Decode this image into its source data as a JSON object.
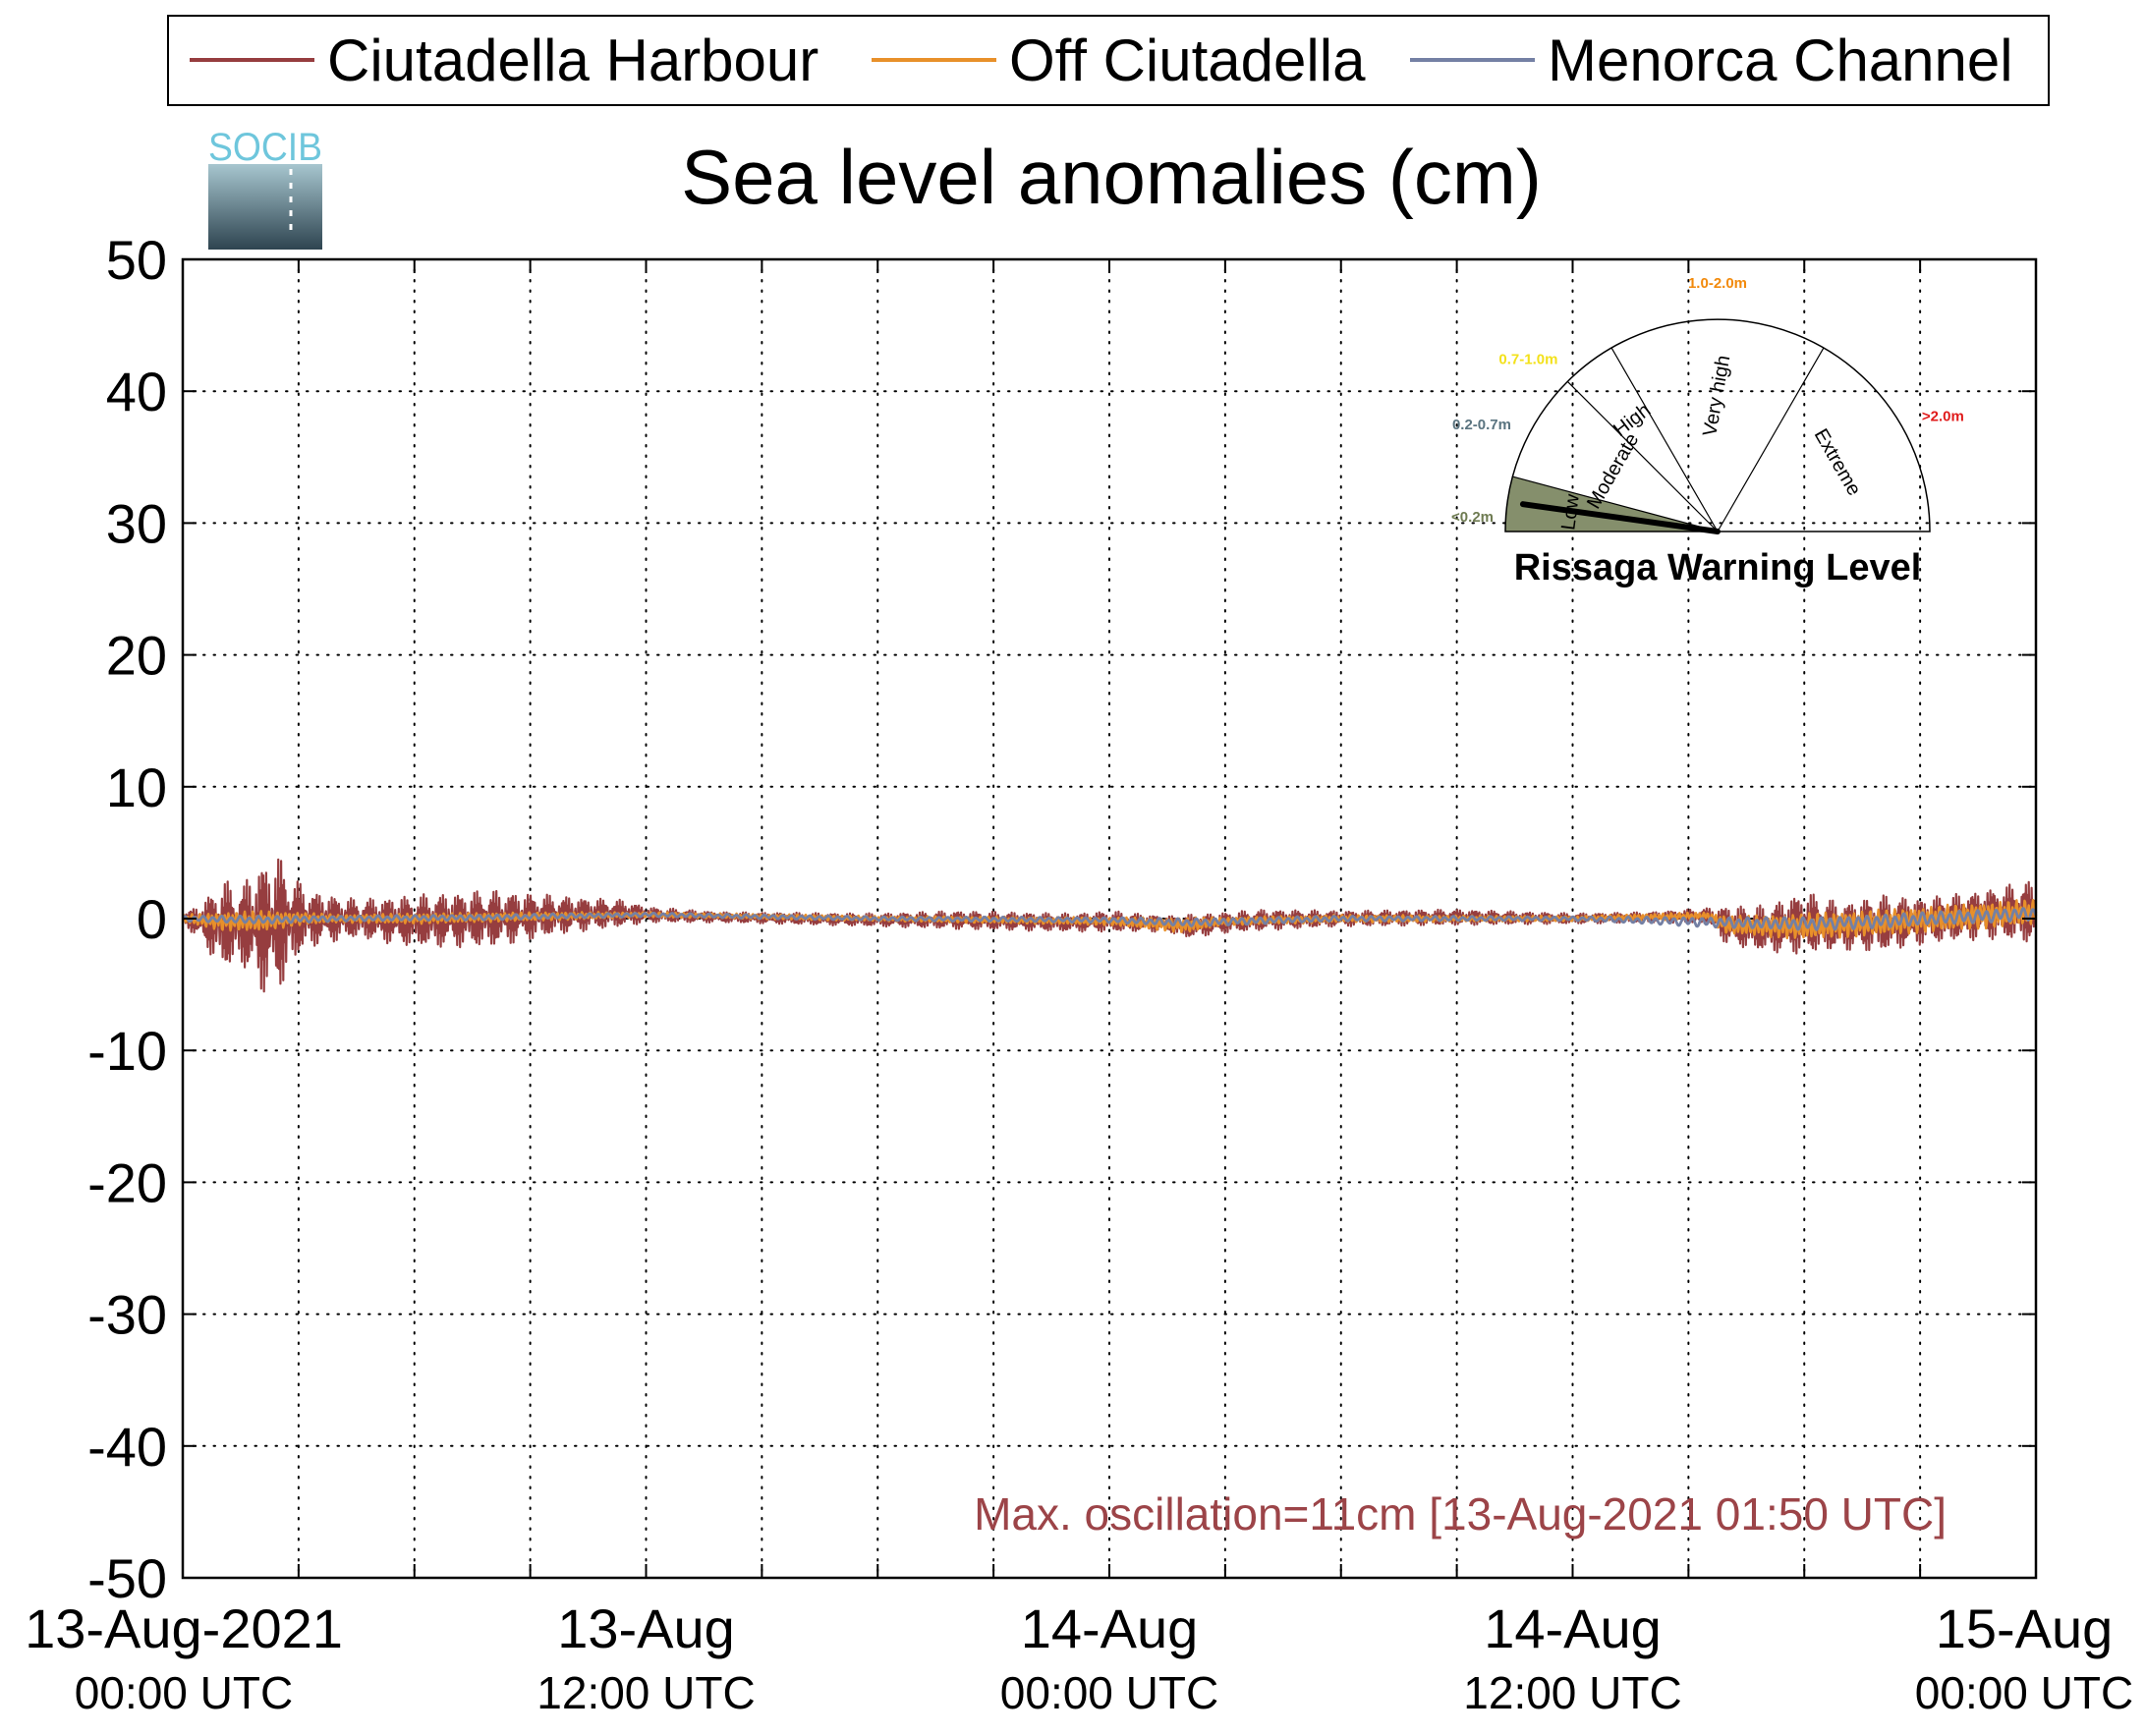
{
  "colors": {
    "harbour": "#963d3f",
    "offshore": "#e8902a",
    "channel": "#7480a4",
    "annotation": "#9c4448",
    "grid": "#000000",
    "logo_text": "#6ec6dc",
    "logo_top": "#a7c6cf",
    "logo_bottom": "#2e4450"
  },
  "logo": {
    "text": "SOCIB"
  },
  "legend": {
    "entries": [
      {
        "label": "Ciutadella Harbour",
        "color_key": "harbour"
      },
      {
        "label": "Off Ciutadella",
        "color_key": "offshore"
      },
      {
        "label": "Menorca Channel",
        "color_key": "channel"
      }
    ]
  },
  "annotation": {
    "text": "Max. oscillation=11cm [13-Aug-2021 01:50 UTC]"
  },
  "gauge": {
    "title": "Rissaga Warning Level",
    "sectors": [
      {
        "label": "Low",
        "range": "<0.2m",
        "range_color": "#6f7c52",
        "start_deg": 180,
        "end_deg": 165,
        "filled": true,
        "fill": "#858f6c"
      },
      {
        "label": "Moderate",
        "range": "0.2-0.7m",
        "range_color": "#5a7480",
        "start_deg": 165,
        "end_deg": 135,
        "filled": false
      },
      {
        "label": "High",
        "range": "0.7-1.0m",
        "range_color": "#f3e11b",
        "start_deg": 135,
        "end_deg": 120,
        "filled": false
      },
      {
        "label": "Very high",
        "range": "1.0-2.0m",
        "range_color": "#f28a0c",
        "start_deg": 120,
        "end_deg": 60,
        "filled": false
      },
      {
        "label": "Extreme",
        "range": ">2.0m",
        "range_color": "#e01b1b",
        "start_deg": 60,
        "end_deg": 0,
        "filled": false
      }
    ],
    "needle_deg": 172
  },
  "chart_data": {
    "type": "line",
    "title": "Sea level anomalies (cm)",
    "xlabel": "",
    "ylabel": "",
    "ylim": [
      -50,
      50
    ],
    "yticks": [
      50,
      40,
      30,
      20,
      10,
      0,
      -10,
      -20,
      -30,
      -40,
      -50
    ],
    "xlim_hours": [
      0,
      48
    ],
    "x_axis_note": "hours since 13-Aug-2021 00:00 UTC",
    "xticks_hours": [
      0,
      3,
      6,
      9,
      12,
      15,
      18,
      21,
      24,
      27,
      30,
      33,
      36,
      39,
      42,
      45,
      48
    ],
    "xtick_labels": [
      {
        "hour": 0,
        "line1": "13-Aug-2021",
        "line2": "00:00 UTC"
      },
      {
        "hour": 12,
        "line1": "13-Aug",
        "line2": "12:00 UTC"
      },
      {
        "hour": 24,
        "line1": "14-Aug",
        "line2": "00:00 UTC"
      },
      {
        "hour": 36,
        "line1": "14-Aug",
        "line2": "12:00 UTC"
      },
      {
        "hour": 48,
        "line1": "15-Aug",
        "line2": "00:00 UTC"
      }
    ],
    "grid": true,
    "legend_position": "top",
    "series": [
      {
        "name": "Ciutadella Harbour",
        "color_key": "harbour",
        "line_width": 2.2,
        "envelope": {
          "hours": [
            0,
            0.5,
            1.0,
            1.5,
            2.0,
            2.5,
            3.0,
            3.5,
            4.5,
            6,
            8,
            10,
            11.5,
            12,
            14,
            18,
            20,
            23,
            24,
            25.5,
            26,
            27,
            28,
            30,
            33,
            36,
            38,
            39.5,
            40,
            41,
            42,
            43,
            44,
            45,
            46,
            47,
            48
          ],
          "amplitude": [
            0.4,
            1.5,
            3.5,
            3.0,
            5.0,
            5.3,
            2.8,
            2.0,
            1.5,
            2.0,
            2.2,
            1.4,
            1.0,
            0.6,
            0.4,
            0.5,
            0.7,
            0.7,
            0.8,
            0.6,
            0.9,
            0.8,
            0.8,
            0.6,
            0.6,
            0.4,
            0.4,
            0.6,
            1.5,
            1.8,
            2.4,
            1.8,
            2.2,
            1.8,
            1.8,
            2.0,
            2.5
          ],
          "offset": [
            0,
            -0.3,
            -0.5,
            -0.5,
            -0.6,
            -0.4,
            0,
            0,
            0,
            -0.2,
            0,
            0.3,
            0.4,
            0.3,
            0.1,
            -0.1,
            -0.1,
            -0.3,
            -0.2,
            -0.4,
            -0.6,
            -0.3,
            -0.1,
            0,
            0.1,
            0,
            0.1,
            0.2,
            -0.5,
            -0.8,
            -0.3,
            -0.6,
            -0.4,
            -0.2,
            0.1,
            0.4,
            0.5
          ]
        }
      },
      {
        "name": "Off Ciutadella",
        "color_key": "offshore",
        "line_width": 2.4,
        "envelope": {
          "hours": [
            0,
            1,
            2,
            3,
            4,
            6,
            10,
            12,
            18,
            24,
            26,
            27,
            30,
            36,
            39.5,
            40,
            42,
            44,
            46,
            48
          ],
          "amplitude": [
            0.3,
            0.7,
            0.8,
            0.5,
            0.3,
            0.4,
            0.3,
            0.2,
            0.2,
            0.3,
            0.6,
            0.3,
            0.3,
            0.2,
            0.3,
            0.7,
            1.0,
            1.0,
            1.0,
            1.0
          ],
          "offset": [
            0,
            -0.2,
            -0.2,
            0,
            0,
            0,
            0.2,
            0.3,
            0,
            -0.2,
            -0.5,
            -0.2,
            0,
            0,
            0.2,
            -0.5,
            -0.6,
            -0.3,
            0.1,
            0.5
          ]
        }
      },
      {
        "name": "Menorca Channel",
        "color_key": "channel",
        "line_width": 2.8,
        "envelope": {
          "hours": [
            0,
            2,
            4,
            8,
            12,
            18,
            24,
            26,
            30,
            36,
            40,
            42,
            44,
            46,
            48
          ],
          "amplitude": [
            0.2,
            0.3,
            0.2,
            0.2,
            0.15,
            0.15,
            0.2,
            0.3,
            0.2,
            0.15,
            0.4,
            0.5,
            0.5,
            0.5,
            0.5
          ],
          "offset": [
            0,
            -0.1,
            0,
            0.1,
            0.3,
            0,
            -0.1,
            -0.3,
            0,
            0,
            -0.3,
            -0.4,
            -0.2,
            0.1,
            0.4
          ]
        }
      }
    ]
  }
}
